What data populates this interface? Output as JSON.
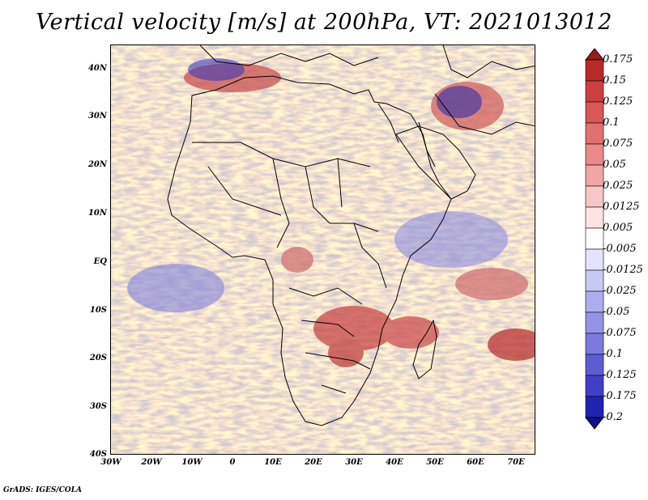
{
  "title": "Vertical velocity [m/s] at 200hPa, VT: 2021013012",
  "footer": "GrADS: IGES/COLA",
  "lat_labels": [
    "40N",
    "30N",
    "20N",
    "10N",
    "EQ",
    "10S",
    "20S",
    "30S",
    "40S"
  ],
  "lon_labels": [
    "30W",
    "20W",
    "10W",
    "0",
    "10E",
    "20E",
    "30E",
    "40E",
    "50E",
    "60E",
    "70E"
  ],
  "colorbar": {
    "levels": [
      "0.175",
      "0.15",
      "0.125",
      "0.1",
      "0.075",
      "0.05",
      "0.025",
      "0.0125",
      "0.005",
      "-0.005",
      "-0.0125",
      "-0.025",
      "-0.05",
      "-0.075",
      "-0.1",
      "-0.125",
      "-0.175",
      "-0.2"
    ],
    "colors": [
      "#9b1b1b",
      "#b82a2a",
      "#cc4040",
      "#d95757",
      "#e27070",
      "#ea8a8a",
      "#f1a6a6",
      "#f7c6c6",
      "#fbe3e3",
      "#ffffff",
      "#e3e3fb",
      "#c8c8f4",
      "#adadee",
      "#9494e6",
      "#7a7adf",
      "#5c5cd5",
      "#3f3fc8",
      "#2222b0",
      "#10108f"
    ]
  },
  "colors": {
    "background_mix_low": "#9f9ff0",
    "background_mix_high": "#e48a8a",
    "coast": "#000000"
  }
}
